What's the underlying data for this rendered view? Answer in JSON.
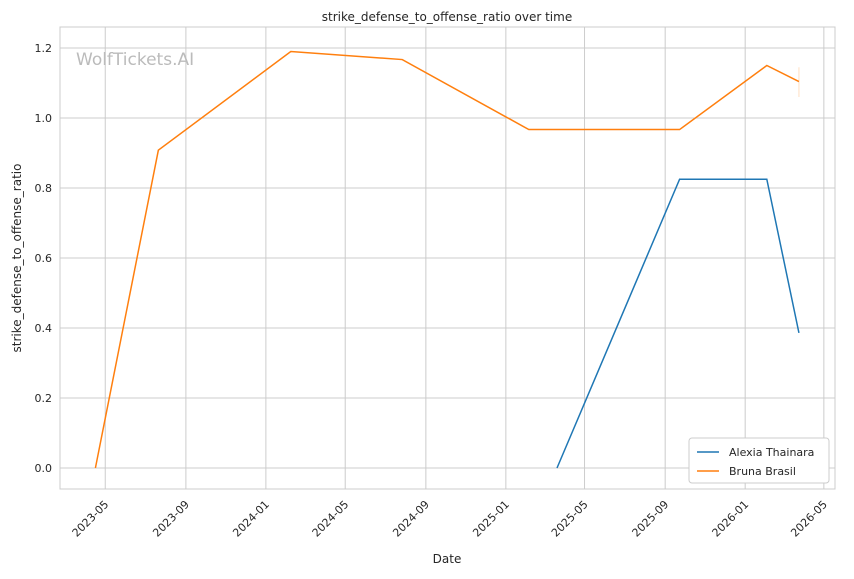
{
  "chart_data": {
    "type": "line",
    "title": "strike_defense_to_offense_ratio over time",
    "xlabel": "Date",
    "ylabel": "strike_defense_to_offense_ratio",
    "watermark": "WolfTickets.AI",
    "xlim": [
      "2023-02-21",
      "2026-05-18"
    ],
    "ylim": [
      -0.06,
      1.26
    ],
    "x_ticks": [
      "2023-05",
      "2023-09",
      "2024-01",
      "2024-05",
      "2024-09",
      "2025-01",
      "2025-05",
      "2025-09",
      "2026-01",
      "2026-05"
    ],
    "y_ticks": [
      0.0,
      0.2,
      0.4,
      0.6,
      0.8,
      1.0,
      1.2
    ],
    "grid": true,
    "legend_position": "lower-right",
    "series": [
      {
        "name": "Alexia Thainara",
        "color": "#1f77b4",
        "x": [
          "2025-03-20",
          "2025-09-23",
          "2026-02-03",
          "2026-03-24"
        ],
        "y": [
          0.0,
          0.825,
          0.825,
          0.386
        ]
      },
      {
        "name": "Bruna Brasil",
        "color": "#ff7f0e",
        "x": [
          "2023-04-16",
          "2023-07-21",
          "2024-02-08",
          "2024-07-27",
          "2025-02-05",
          "2025-09-23",
          "2026-02-03",
          "2026-03-24"
        ],
        "y": [
          0.0,
          0.908,
          1.19,
          1.167,
          0.967,
          0.967,
          1.15,
          1.104
        ],
        "band_last": [
          1.06,
          1.145
        ]
      }
    ]
  }
}
